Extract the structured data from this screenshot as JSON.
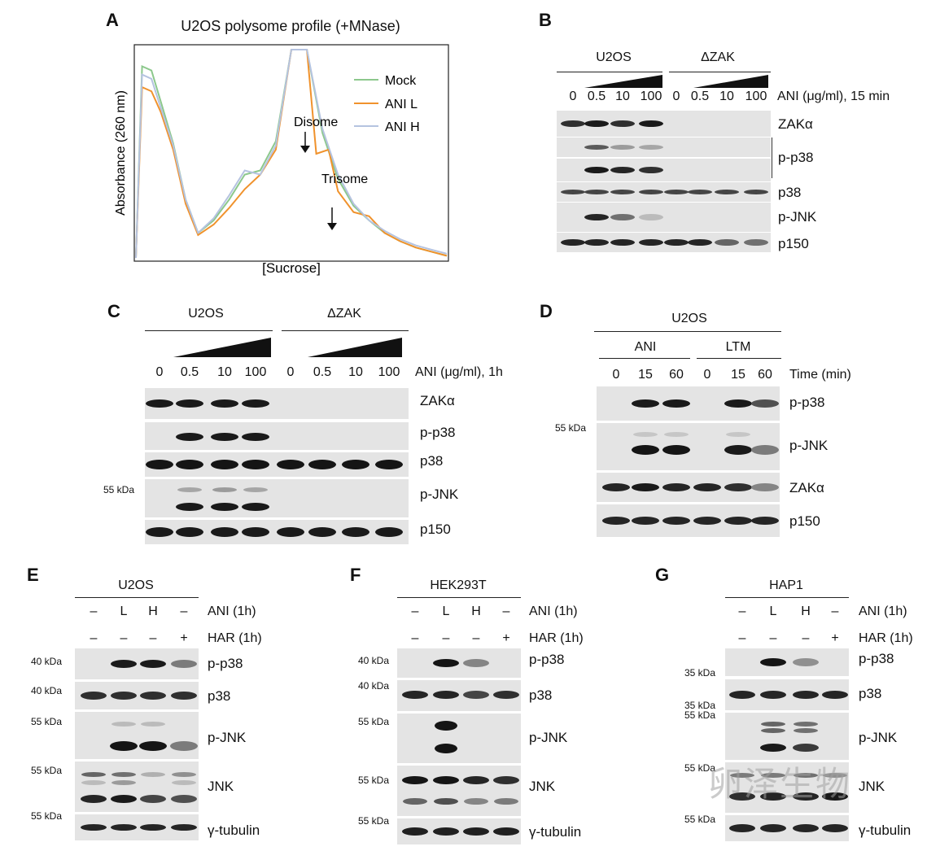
{
  "panels": {
    "A": {
      "label": "A",
      "title": "U2OS polysome profile (+MNase)",
      "chart_data": {
        "type": "line",
        "title": "U2OS polysome profile (+MNase)",
        "xlabel": "[Sucrose]",
        "ylabel": "Absorbance (260 nm)",
        "legend_placement": "top-right",
        "series": [
          {
            "name": "Mock",
            "color": "#8cc88c",
            "x": [
              0,
              2,
              5,
              8,
              12,
              16,
              20,
              25,
              30,
              35,
              40,
              45,
              50,
              55,
              60,
              65,
              70,
              75,
              80,
              85,
              90,
              95,
              100
            ],
            "y": [
              0,
              92,
              90,
              75,
              55,
              28,
              12,
              18,
              28,
              40,
              42,
              56,
              100,
              100,
              60,
              38,
              25,
              18,
              12,
              8,
              5,
              3,
              1
            ]
          },
          {
            "name": "ANI L",
            "color": "#f0922c",
            "x": [
              0,
              2,
              5,
              8,
              12,
              16,
              20,
              25,
              30,
              35,
              40,
              45,
              50,
              55,
              58,
              62,
              65,
              70,
              75,
              80,
              85,
              90,
              95,
              100
            ],
            "y": [
              0,
              82,
              80,
              70,
              52,
              26,
              11,
              16,
              24,
              33,
              40,
              52,
              100,
              100,
              50,
              52,
              32,
              22,
              20,
              12,
              8,
              5,
              3,
              1
            ]
          },
          {
            "name": "ANI H",
            "color": "#b5c3e0",
            "x": [
              0,
              2,
              5,
              8,
              12,
              16,
              20,
              25,
              30,
              35,
              40,
              45,
              50,
              55,
              60,
              65,
              70,
              75,
              80,
              85,
              90,
              95,
              100
            ],
            "y": [
              0,
              88,
              86,
              72,
              54,
              28,
              12,
              19,
              30,
              42,
              40,
              54,
              100,
              100,
              62,
              40,
              26,
              18,
              13,
              9,
              6,
              4,
              2
            ]
          }
        ]
      },
      "legend": [
        "Mock",
        "ANI L",
        "ANI H"
      ],
      "annotations": [
        "Disome",
        "Trisome"
      ]
    },
    "B": {
      "label": "B",
      "groups": [
        "U2OS",
        "ΔZAK"
      ],
      "lanes": [
        "0",
        "0.5",
        "10",
        "100",
        "0",
        "0.5",
        "10",
        "100"
      ],
      "treatment": "ANI (μg/ml), 15 min",
      "rows": [
        "ZAKα",
        "p-p38",
        "p38",
        "p-JNK",
        "p150"
      ]
    },
    "C": {
      "label": "C",
      "groups": [
        "U2OS",
        "ΔZAK"
      ],
      "lanes": [
        "0",
        "0.5",
        "10",
        "100",
        "0",
        "0.5",
        "10",
        "100"
      ],
      "treatment": "ANI (μg/ml), 1h",
      "rows": [
        "ZAKα",
        "p-p38",
        "p38",
        "p-JNK",
        "p150"
      ],
      "kda": [
        "55 kDa"
      ]
    },
    "D": {
      "label": "D",
      "group": "U2OS",
      "subgroups": [
        "ANI",
        "LTM"
      ],
      "lanes": [
        "0",
        "15",
        "60",
        "0",
        "15",
        "60"
      ],
      "treatment": "Time (min)",
      "rows": [
        "p-p38",
        "p-JNK",
        "ZAKα",
        "p150"
      ],
      "kda": [
        "55 kDa"
      ]
    },
    "E": {
      "label": "E",
      "group": "U2OS",
      "ani": [
        "–",
        "L",
        "H",
        "–"
      ],
      "har": [
        "–",
        "–",
        "–",
        "+"
      ],
      "ani_label": "ANI (1h)",
      "har_label": "HAR (1h)",
      "rows": [
        "p-p38",
        "p38",
        "p-JNK",
        "JNK",
        "γ-tubulin"
      ],
      "kda": [
        "40 kDa",
        "40 kDa",
        "55 kDa",
        "55 kDa",
        "55 kDa"
      ]
    },
    "F": {
      "label": "F",
      "group": "HEK293T",
      "ani": [
        "–",
        "L",
        "H",
        "–"
      ],
      "har": [
        "–",
        "–",
        "–",
        "+"
      ],
      "ani_label": "ANI (1h)",
      "har_label": "HAR (1h)",
      "rows": [
        "p-p38",
        "p38",
        "p-JNK",
        "JNK",
        "γ-tubulin"
      ],
      "kda": [
        "40 kDa",
        "40 kDa",
        "55 kDa",
        "55 kDa",
        "55 kDa"
      ]
    },
    "G": {
      "label": "G",
      "group": "HAP1",
      "ani": [
        "–",
        "L",
        "H",
        "–"
      ],
      "har": [
        "–",
        "–",
        "–",
        "+"
      ],
      "ani_label": "ANI (1h)",
      "har_label": "HAR (1h)",
      "rows": [
        "p-p38",
        "p38",
        "p-JNK",
        "JNK",
        "γ-tubulin"
      ],
      "kda": [
        "35 kDa",
        "35 kDa",
        "55 kDa",
        "55 kDa",
        "55 kDa"
      ]
    }
  },
  "watermark": "卵泽生物"
}
